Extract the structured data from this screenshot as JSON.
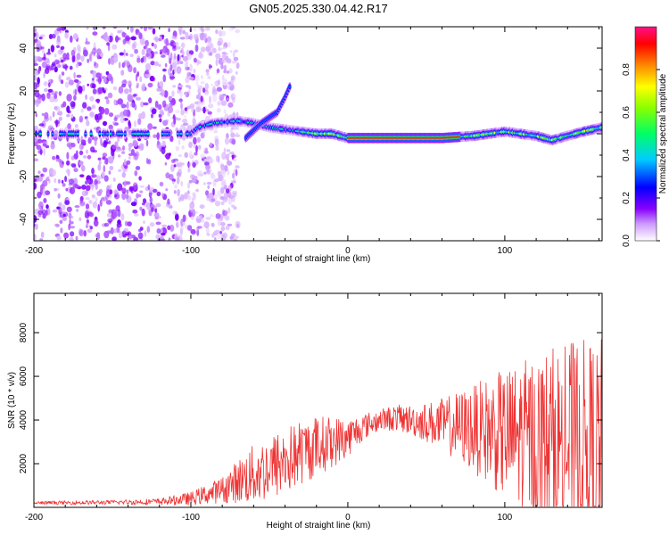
{
  "title": "GN05.2025.330.04.42.R17",
  "chart_data": [
    {
      "type": "heatmap",
      "name": "spectrogram",
      "xlabel": "Height of straight line (km)",
      "ylabel": "Frequency (Hz)",
      "xlim": [
        -200,
        162
      ],
      "ylim": [
        -50,
        50
      ],
      "xticks": [
        -200,
        -100,
        0,
        100
      ],
      "yticks": [
        -40,
        -20,
        0,
        20,
        40
      ],
      "colorbar": {
        "label": "Normalized spectral amplitude",
        "range": [
          0.0,
          1.0
        ],
        "ticks": [
          0.0,
          0.2,
          0.4,
          0.6,
          0.8
        ]
      },
      "ridge": {
        "description": "dominant frequency trace",
        "x": [
          -200,
          -100,
          -95,
          -85,
          -70,
          -60,
          -50,
          -40,
          -30,
          -20,
          -10,
          0,
          20,
          40,
          60,
          80,
          100,
          110,
          120,
          130,
          140,
          150,
          162
        ],
        "y": [
          0,
          0,
          3,
          5,
          6,
          5,
          3,
          2,
          1,
          0,
          0,
          -2,
          -2,
          -2,
          -2,
          -1,
          1,
          0,
          -1,
          -3,
          -1,
          1,
          3
        ]
      },
      "branch": {
        "x": [
          -65,
          -55,
          -45,
          -40,
          -37
        ],
        "y": [
          -2,
          5,
          10,
          17,
          22
        ]
      },
      "noise_region_x": [
        -200,
        -95
      ]
    },
    {
      "type": "line",
      "name": "snr",
      "xlabel": "Height of straight line (km)",
      "ylabel": "SNR (10 * v/v)",
      "xlim": [
        -200,
        162
      ],
      "ylim": [
        0,
        9800
      ],
      "xticks": [
        -200,
        -100,
        0,
        100
      ],
      "yticks": [
        2000,
        4000,
        6000,
        8000
      ],
      "color": "#ee3333",
      "envelope": {
        "x": [
          -200,
          -150,
          -120,
          -100,
          -80,
          -70,
          -60,
          -50,
          -40,
          -30,
          -20,
          -10,
          0,
          10,
          20,
          30,
          40,
          50,
          60,
          70,
          80,
          90,
          100,
          110,
          120,
          130,
          140,
          150,
          162
        ],
        "mean": [
          200,
          230,
          260,
          400,
          800,
          1200,
          1500,
          1800,
          2100,
          2500,
          2800,
          3000,
          3200,
          3700,
          4000,
          4100,
          4000,
          3900,
          3800,
          3700,
          3600,
          3500,
          3300,
          3200,
          3000,
          2900,
          2800,
          2700,
          2600
        ],
        "spread": [
          80,
          100,
          150,
          300,
          600,
          1000,
          1400,
          1500,
          1600,
          1500,
          1400,
          1200,
          900,
          600,
          500,
          600,
          700,
          900,
          1200,
          1600,
          2000,
          2500,
          3000,
          3500,
          4000,
          4500,
          4800,
          5000,
          5200
        ]
      }
    }
  ]
}
